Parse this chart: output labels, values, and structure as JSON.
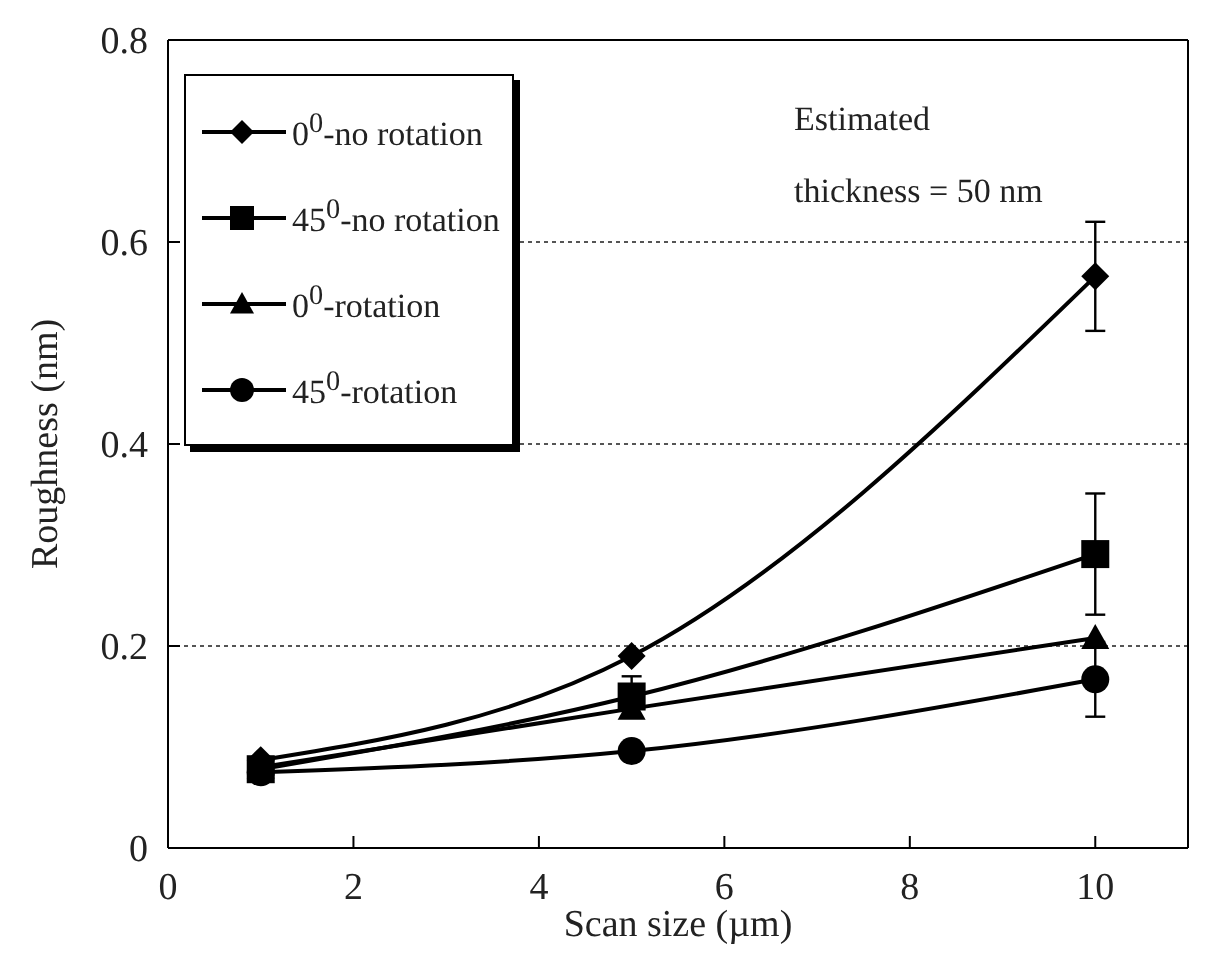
{
  "chart_data": {
    "type": "line",
    "xlabel": "Scan size (µm)",
    "ylabel": "Roughness (nm)",
    "x": [
      1,
      5,
      10
    ],
    "series": [
      {
        "name": "0$^{0}$-no rotation",
        "color": "#000000",
        "marker": "diamond",
        "values": [
          0.087,
          0.19,
          0.566
        ],
        "errors": [
          null,
          null,
          0.054
        ]
      },
      {
        "name": "45$^{0}$-no rotation",
        "color": "#000000",
        "marker": "square",
        "values": [
          0.078,
          0.15,
          0.291
        ],
        "errors": [
          null,
          0.02,
          0.06
        ]
      },
      {
        "name": "0$^{0}$-rotation",
        "color": "#000000",
        "marker": "triangle",
        "values": [
          0.08,
          0.138,
          0.208
        ],
        "errors": [
          null,
          null,
          null
        ]
      },
      {
        "name": "45$^{0}$-rotation",
        "color": "#000000",
        "marker": "circle",
        "values": [
          0.075,
          0.096,
          0.167
        ],
        "errors": [
          null,
          null,
          0.037
        ]
      }
    ],
    "xlim": [
      0,
      11
    ],
    "xticks": [
      0,
      2,
      4,
      6,
      8,
      10
    ],
    "ylim": [
      0,
      0.8
    ],
    "yticks": [
      0,
      0.2,
      0.4,
      0.6,
      0.8
    ],
    "grid": "y",
    "legend": "top left",
    "line_style": "solid",
    "annotations": [
      "Estimated\nthickness = 50 nm"
    ]
  }
}
